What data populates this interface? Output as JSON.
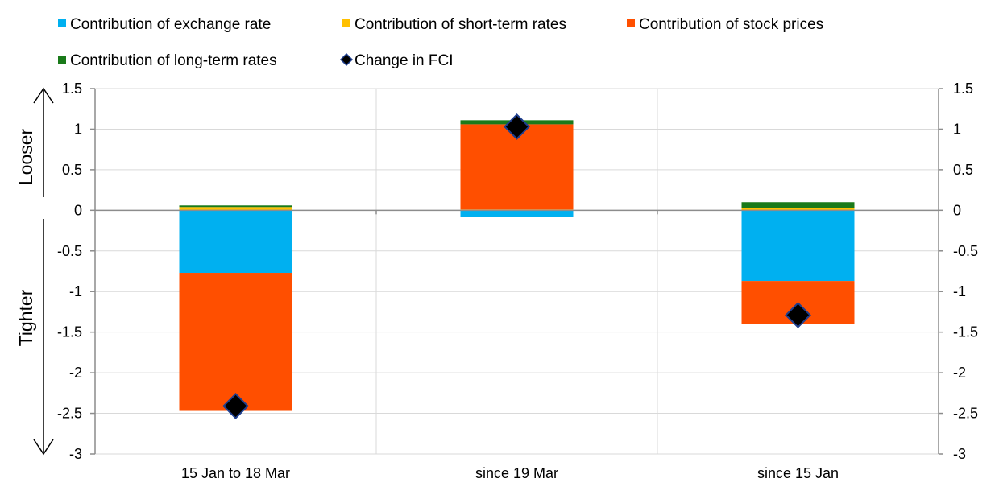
{
  "chart_data": {
    "type": "bar",
    "stacked": true,
    "categories": [
      "15 Jan to 18 Mar",
      "since 19 Mar",
      "since 15 Jan"
    ],
    "series": [
      {
        "name": "Contribution of exchange rate",
        "color": "#00B0F0",
        "values": [
          -0.77,
          -0.08,
          -0.87
        ]
      },
      {
        "name": "Contribution of short-term rates",
        "color": "#FFC000",
        "values": [
          0.04,
          0.01,
          0.03
        ]
      },
      {
        "name": "Contribution of stock prices",
        "color": "#FF4F00",
        "values": [
          -1.7,
          1.05,
          -0.53
        ]
      },
      {
        "name": "Contribution of long-term rates",
        "color": "#1A7A1A",
        "values": [
          0.02,
          0.05,
          0.07
        ]
      }
    ],
    "fci": {
      "name": "Change in FCI",
      "values": [
        -2.41,
        1.03,
        -1.29
      ]
    },
    "ylim": [
      -3,
      1.5
    ],
    "yticks": [
      1.5,
      1,
      0.5,
      0,
      -0.5,
      -1,
      -1.5,
      -2,
      -2.5,
      -3
    ],
    "ytick_labels": [
      "1.5",
      "1",
      "0.5",
      "0",
      "-0.5",
      "-1",
      "-1.5",
      "-2",
      "-2.5",
      "-3"
    ],
    "y_axis_sides": [
      "left",
      "right"
    ],
    "grid": "horizontal and vertical",
    "legend_position": "top",
    "annotations": {
      "upper": "Looser",
      "lower": "Tighter"
    }
  }
}
